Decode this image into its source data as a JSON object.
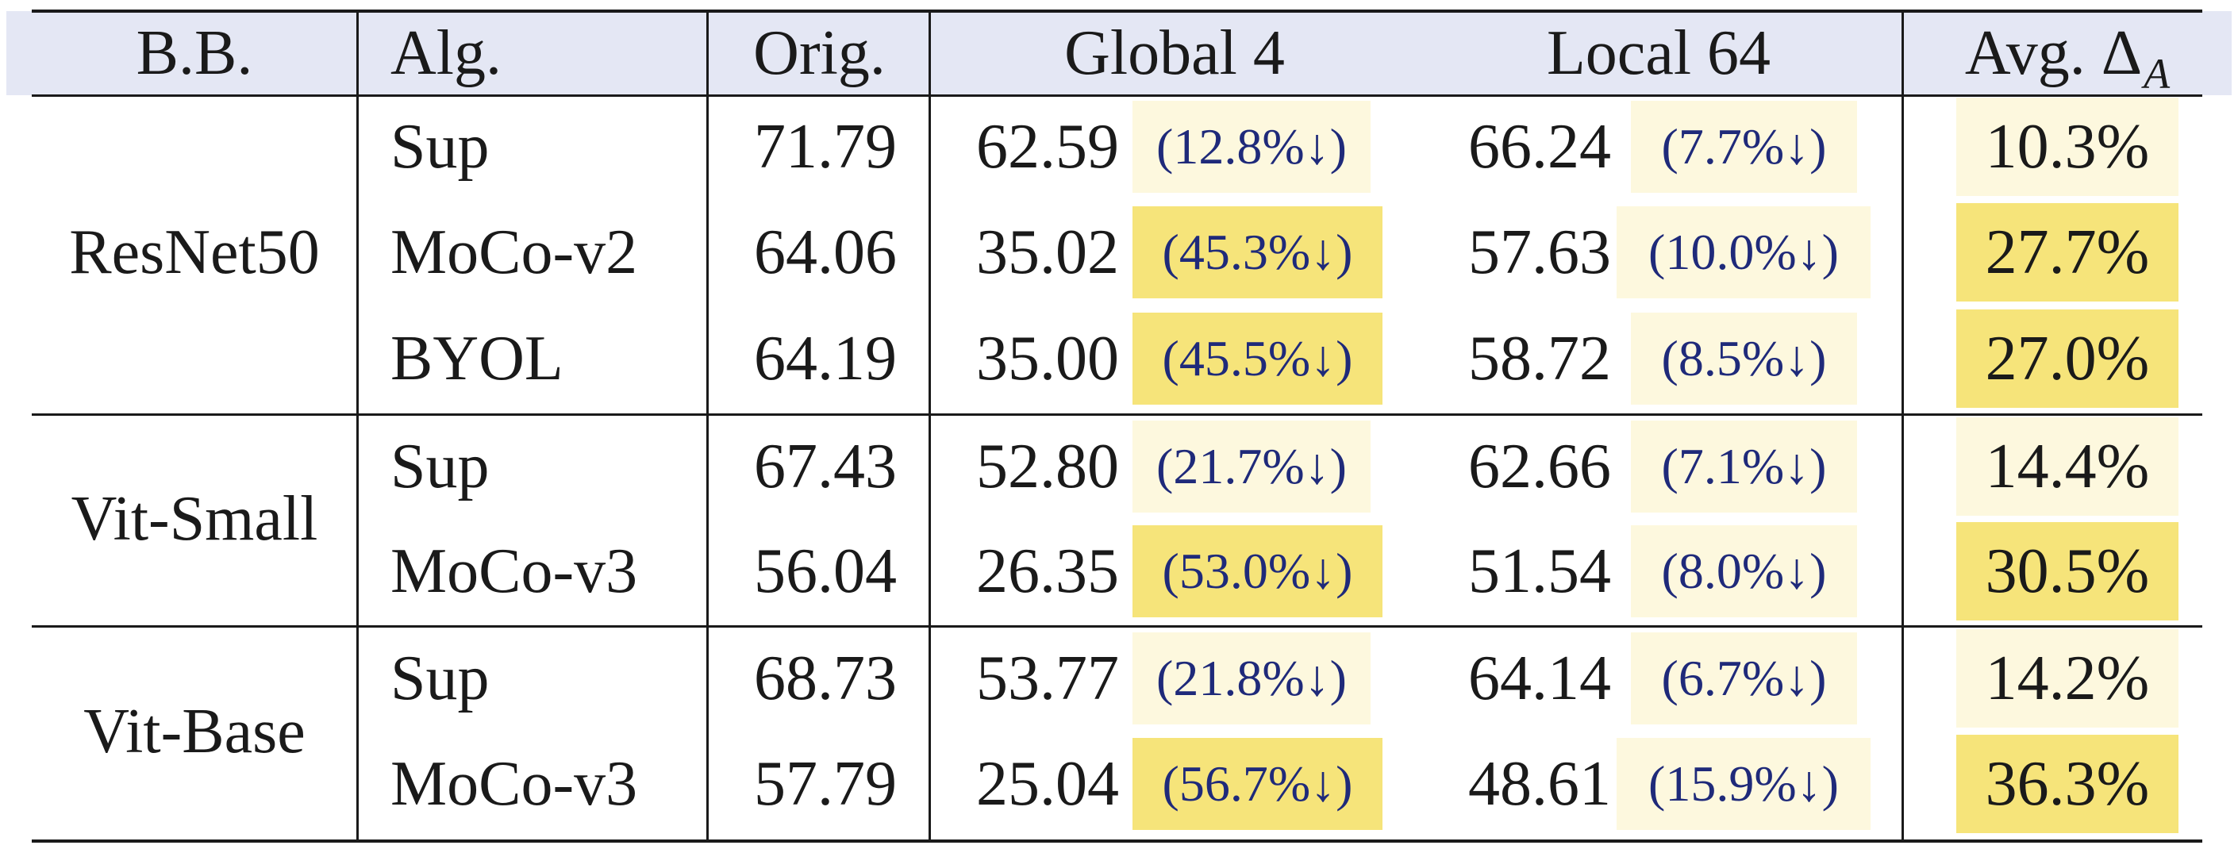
{
  "headers": {
    "bb": "B.B.",
    "alg": "Alg.",
    "orig": "Orig.",
    "global": "Global 4",
    "local": "Local 64",
    "avg": "Avg. Δ",
    "avg_sub": "A"
  },
  "groups": [
    {
      "backbone": "ResNet50",
      "rows": [
        {
          "alg": "Sup",
          "orig": "71.79",
          "global_val": "62.59",
          "global_pct": "(12.8%↓)",
          "local_val": "66.24",
          "local_pct": "(7.7%↓)",
          "avg": "10.3%"
        },
        {
          "alg": "MoCo-v2",
          "orig": "64.06",
          "global_val": "35.02",
          "global_pct": "(45.3%↓)",
          "local_val": "57.63",
          "local_pct": "(10.0%↓)",
          "avg": "27.7%"
        },
        {
          "alg": "BYOL",
          "orig": "64.19",
          "global_val": "35.00",
          "global_pct": "(45.5%↓)",
          "local_val": "58.72",
          "local_pct": "(8.5%↓)",
          "avg": "27.0%"
        }
      ]
    },
    {
      "backbone": "Vit-Small",
      "rows": [
        {
          "alg": "Sup",
          "orig": "67.43",
          "global_val": "52.80",
          "global_pct": "(21.7%↓)",
          "local_val": "62.66",
          "local_pct": "(7.1%↓)",
          "avg": "14.4%"
        },
        {
          "alg": "MoCo-v3",
          "orig": "56.04",
          "global_val": "26.35",
          "global_pct": "(53.0%↓)",
          "local_val": "51.54",
          "local_pct": "(8.0%↓)",
          "avg": "30.5%"
        }
      ]
    },
    {
      "backbone": "Vit-Base",
      "rows": [
        {
          "alg": "Sup",
          "orig": "68.73",
          "global_val": "53.77",
          "global_pct": "(21.8%↓)",
          "local_val": "64.14",
          "local_pct": "(6.7%↓)",
          "avg": "14.2%"
        },
        {
          "alg": "MoCo-v3",
          "orig": "57.79",
          "global_val": "25.04",
          "global_pct": "(56.7%↓)",
          "local_val": "48.61",
          "local_pct": "(15.9%↓)",
          "avg": "36.3%"
        }
      ]
    }
  ],
  "highlight_colors": {
    "low": "#fdf8de",
    "mid": "#faf0b0",
    "high": "#f6e47a"
  }
}
